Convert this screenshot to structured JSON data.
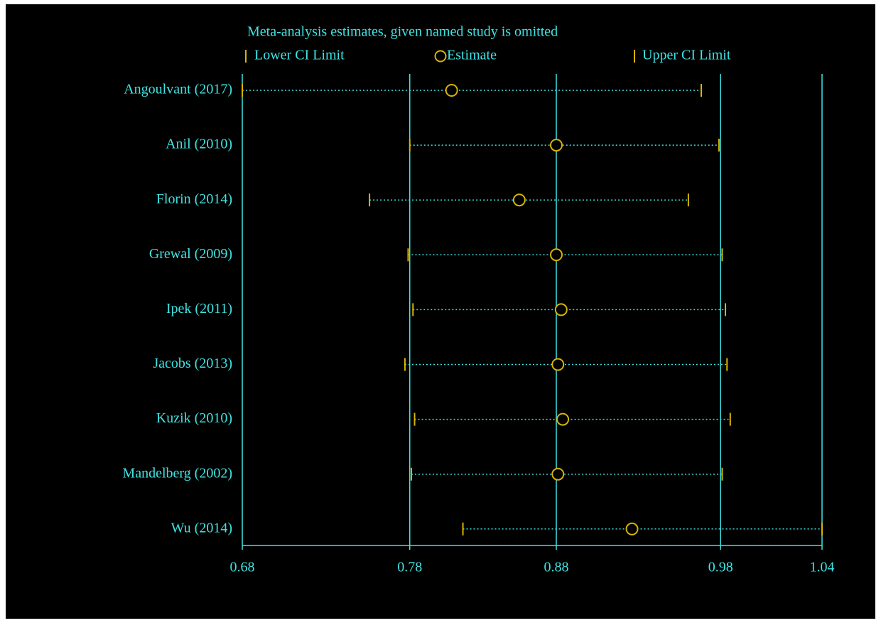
{
  "chart_data": {
    "type": "forest",
    "title": "Meta-analysis estimates, given named study is omitted",
    "categories": [
      "Angoulvant (2017)",
      "Anil  (2010)",
      "Florin (2014)",
      "Grewal (2009)",
      "Ipek (2011)",
      "Jacobs (2013)",
      "Kuzik  (2010)",
      "Mandelberg  (2002)",
      "Wu (2014)"
    ],
    "series": [
      {
        "name": "Lower CI Limit",
        "color": "#d8b400",
        "values": [
          0.68,
          0.784,
          0.759,
          0.783,
          0.786,
          0.781,
          0.787,
          0.785,
          0.817
        ]
      },
      {
        "name": "Estimate",
        "color": "#d8b400",
        "values": [
          0.81,
          0.875,
          0.852,
          0.875,
          0.878,
          0.876,
          0.879,
          0.876,
          0.922
        ]
      },
      {
        "name": "Upper CI Limit",
        "color": "#d8b400",
        "values": [
          0.965,
          0.976,
          0.957,
          0.978,
          0.98,
          0.981,
          0.983,
          0.978,
          1.04
        ]
      }
    ],
    "xlim": [
      0.68,
      1.04
    ],
    "xticks": [
      0.68,
      {
        "value": 0.784,
        "label": "0.78"
      },
      {
        "value": 0.875,
        "label": "0.88"
      },
      {
        "value": 0.977,
        "label": "0.98"
      },
      1.04
    ],
    "grid": true,
    "axis_color": "#3fe3e3"
  }
}
